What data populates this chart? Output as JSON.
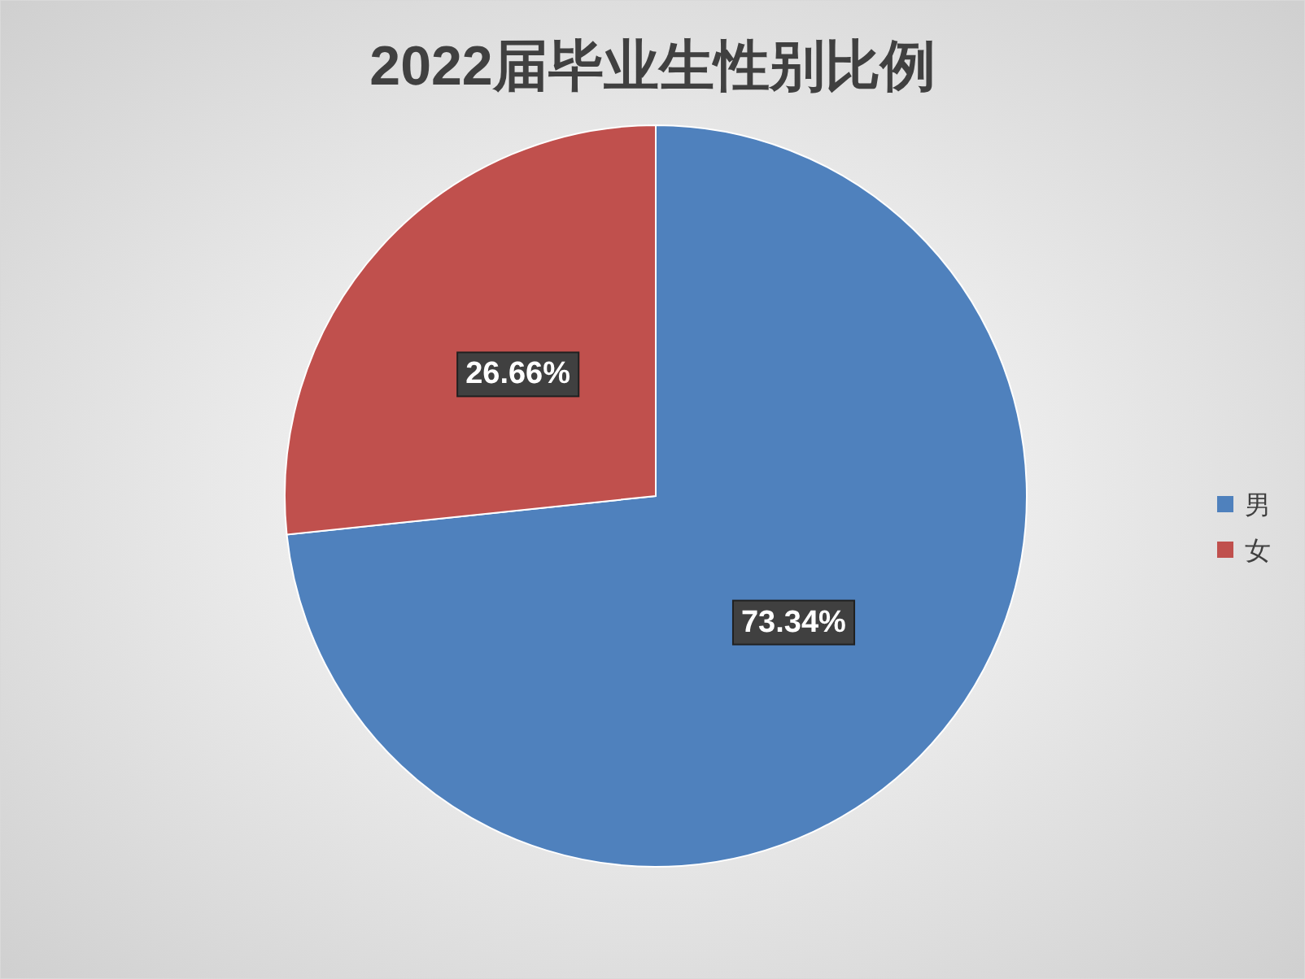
{
  "chart_data": {
    "type": "pie",
    "title": "2022届毕业生性别比例",
    "categories": [
      "男",
      "女"
    ],
    "values": [
      73.34,
      26.66
    ],
    "colors": [
      "#4f81bd",
      "#c0504d"
    ],
    "value_labels": [
      "73.34%",
      "26.66%"
    ],
    "legend": "right"
  }
}
